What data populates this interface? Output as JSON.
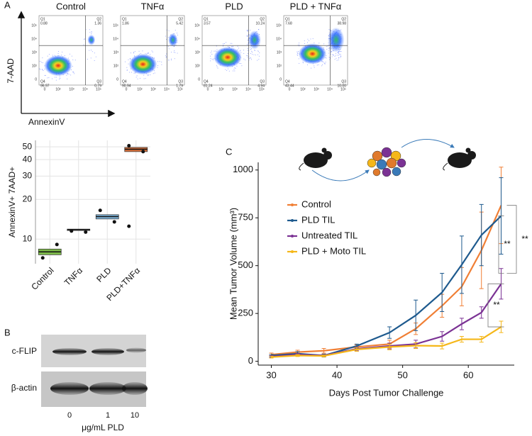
{
  "panels": [
    "A",
    "B",
    "C"
  ],
  "flow": {
    "y_label": "7-AAD",
    "x_label": "AnnexinV",
    "quadrant_names": [
      "Q1",
      "Q2",
      "Q3",
      "Q4"
    ],
    "ticks": [
      "0",
      "10²",
      "10³",
      "10⁴",
      "10⁵"
    ],
    "plots": [
      {
        "title": "Control",
        "q1": "0.88",
        "q2": "1.36",
        "q3": "0.79",
        "q4": "96.97"
      },
      {
        "title": "TNFα",
        "q1": "1.86",
        "q2": "5.42",
        "q3": "1.79",
        "q4": "90.94"
      },
      {
        "title": "PLD",
        "q1": "3.57",
        "q2": "10.24",
        "q3": "4.94",
        "q4": "81.24"
      },
      {
        "title": "PLD + TNFα",
        "q1": "7.68",
        "q2": "38.98",
        "q3": "10.00",
        "q4": "43.44"
      }
    ]
  },
  "blot": {
    "rows": [
      "c-FLIP",
      "β-actin"
    ],
    "lanes": [
      "0",
      "1",
      "10"
    ],
    "unit": "μg/mL PLD"
  },
  "chart_data": [
    {
      "type": "box",
      "y_label": "AnnexinV+ 7AAD+",
      "categories": [
        "Control",
        "TNFα",
        "PLD",
        "PLD+TNFα"
      ],
      "series": [
        {
          "color": "#7cb84a",
          "q1": 7.6,
          "median": 8.0,
          "q3": 8.4,
          "points": [
            7.2,
            9.1
          ]
        },
        {
          "color": "#8c8c8c",
          "q1": 11.6,
          "median": 11.8,
          "q3": 11.9,
          "points": [
            11.5,
            11.3
          ]
        },
        {
          "color": "#7fb3d9",
          "q1": 14.2,
          "median": 14.8,
          "q3": 15.3,
          "points": [
            16.5,
            13.5
          ]
        },
        {
          "color": "#d8703a",
          "q1": 46,
          "median": 48,
          "q3": 49.5,
          "points": [
            51,
            46,
            12.5
          ]
        }
      ],
      "ylim": [
        6.5,
        56
      ],
      "yticks": [
        10,
        20,
        30,
        40,
        50
      ],
      "log_scale": true,
      "grid": true
    },
    {
      "type": "line",
      "x_label": "Days Post Tumor Challenge",
      "y_label": "Mean Tumor Volume (mm³)",
      "x": [
        30,
        34,
        38,
        43,
        48,
        52,
        56,
        59,
        62,
        65
      ],
      "series": [
        {
          "name": "Control",
          "color": "#f07f35",
          "values": [
            35,
            48,
            55,
            75,
            90,
            170,
            290,
            390,
            580,
            815
          ],
          "errors": [
            8,
            10,
            12,
            10,
            20,
            30,
            60,
            100,
            200,
            200
          ]
        },
        {
          "name": "PLD TIL",
          "color": "#1e5a8e",
          "values": [
            30,
            40,
            30,
            80,
            150,
            240,
            360,
            505,
            660,
            760
          ],
          "errors": [
            5,
            10,
            8,
            10,
            30,
            80,
            100,
            150,
            160,
            200
          ]
        },
        {
          "name": "Untreated TIL",
          "color": "#7b3294",
          "values": [
            25,
            35,
            30,
            65,
            80,
            90,
            130,
            195,
            255,
            405
          ],
          "errors": [
            5,
            5,
            5,
            10,
            15,
            20,
            25,
            30,
            30,
            80
          ]
        },
        {
          "name": "PLD + Moto TIL",
          "color": "#f5b719",
          "values": [
            22,
            30,
            28,
            62,
            75,
            82,
            80,
            115,
            115,
            180
          ],
          "errors": [
            5,
            5,
            5,
            10,
            15,
            15,
            15,
            15,
            15,
            30
          ]
        }
      ],
      "xlim": [
        28,
        67
      ],
      "xticks": [
        30,
        40,
        50,
        60
      ],
      "ylim": [
        -20,
        1040
      ],
      "yticks": [
        0,
        250,
        500,
        750,
        1000
      ],
      "legend": "upper left",
      "annotations": [
        "**",
        "**",
        "**"
      ]
    }
  ]
}
